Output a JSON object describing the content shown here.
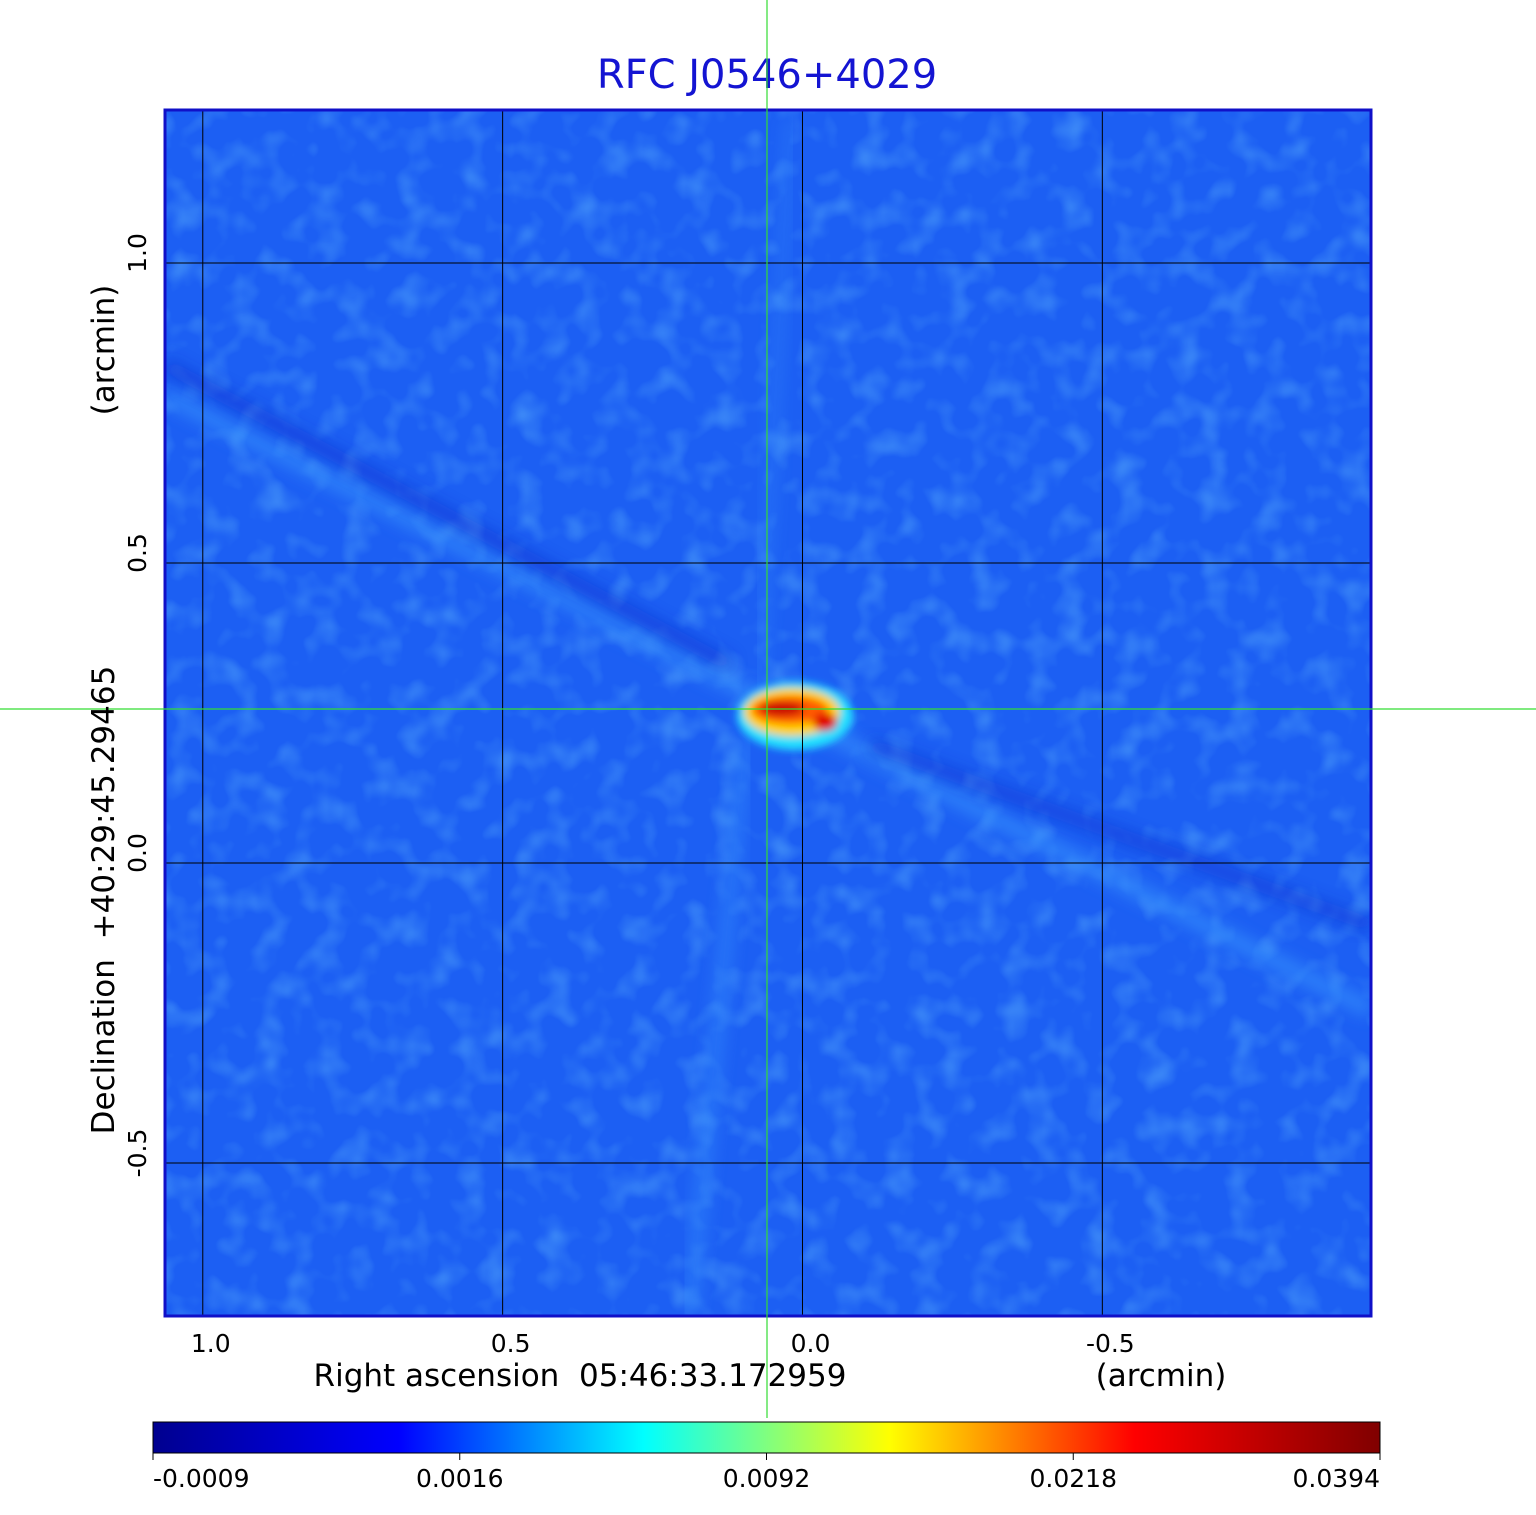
{
  "chart_data": {
    "type": "image",
    "title": "RFC J0546+4029",
    "x_label": "Right ascension  05:46:33.172959",
    "x_unit": "(arcmin)",
    "y_label": "Declination  +40:29:45.29465",
    "y_unit": "(arcmin)",
    "xlim": [
      1.063,
      -0.948
    ],
    "ylim": [
      -0.755,
      1.255
    ],
    "xticks": [
      {
        "value": 1,
        "label": "1.0"
      },
      {
        "value": 0.5,
        "label": "0.5"
      },
      {
        "value": 0,
        "label": "0.0"
      },
      {
        "value": -0.5,
        "label": "-0.5"
      }
    ],
    "yticks": [
      {
        "value": 1,
        "label": "1.0"
      },
      {
        "value": 0.5,
        "label": "0.5"
      },
      {
        "value": 0,
        "label": "0.0"
      },
      {
        "value": -0.5,
        "label": "-0.5"
      }
    ],
    "grid": true,
    "colorbar": {
      "ticks": [
        -0.0009,
        0.0016,
        0.0092,
        0.0218,
        0.0394
      ],
      "colors": [
        "#00008f",
        "#0000ff",
        "#00ffff",
        "#ffff00",
        "#ff0000",
        "#800000"
      ]
    }
  }
}
